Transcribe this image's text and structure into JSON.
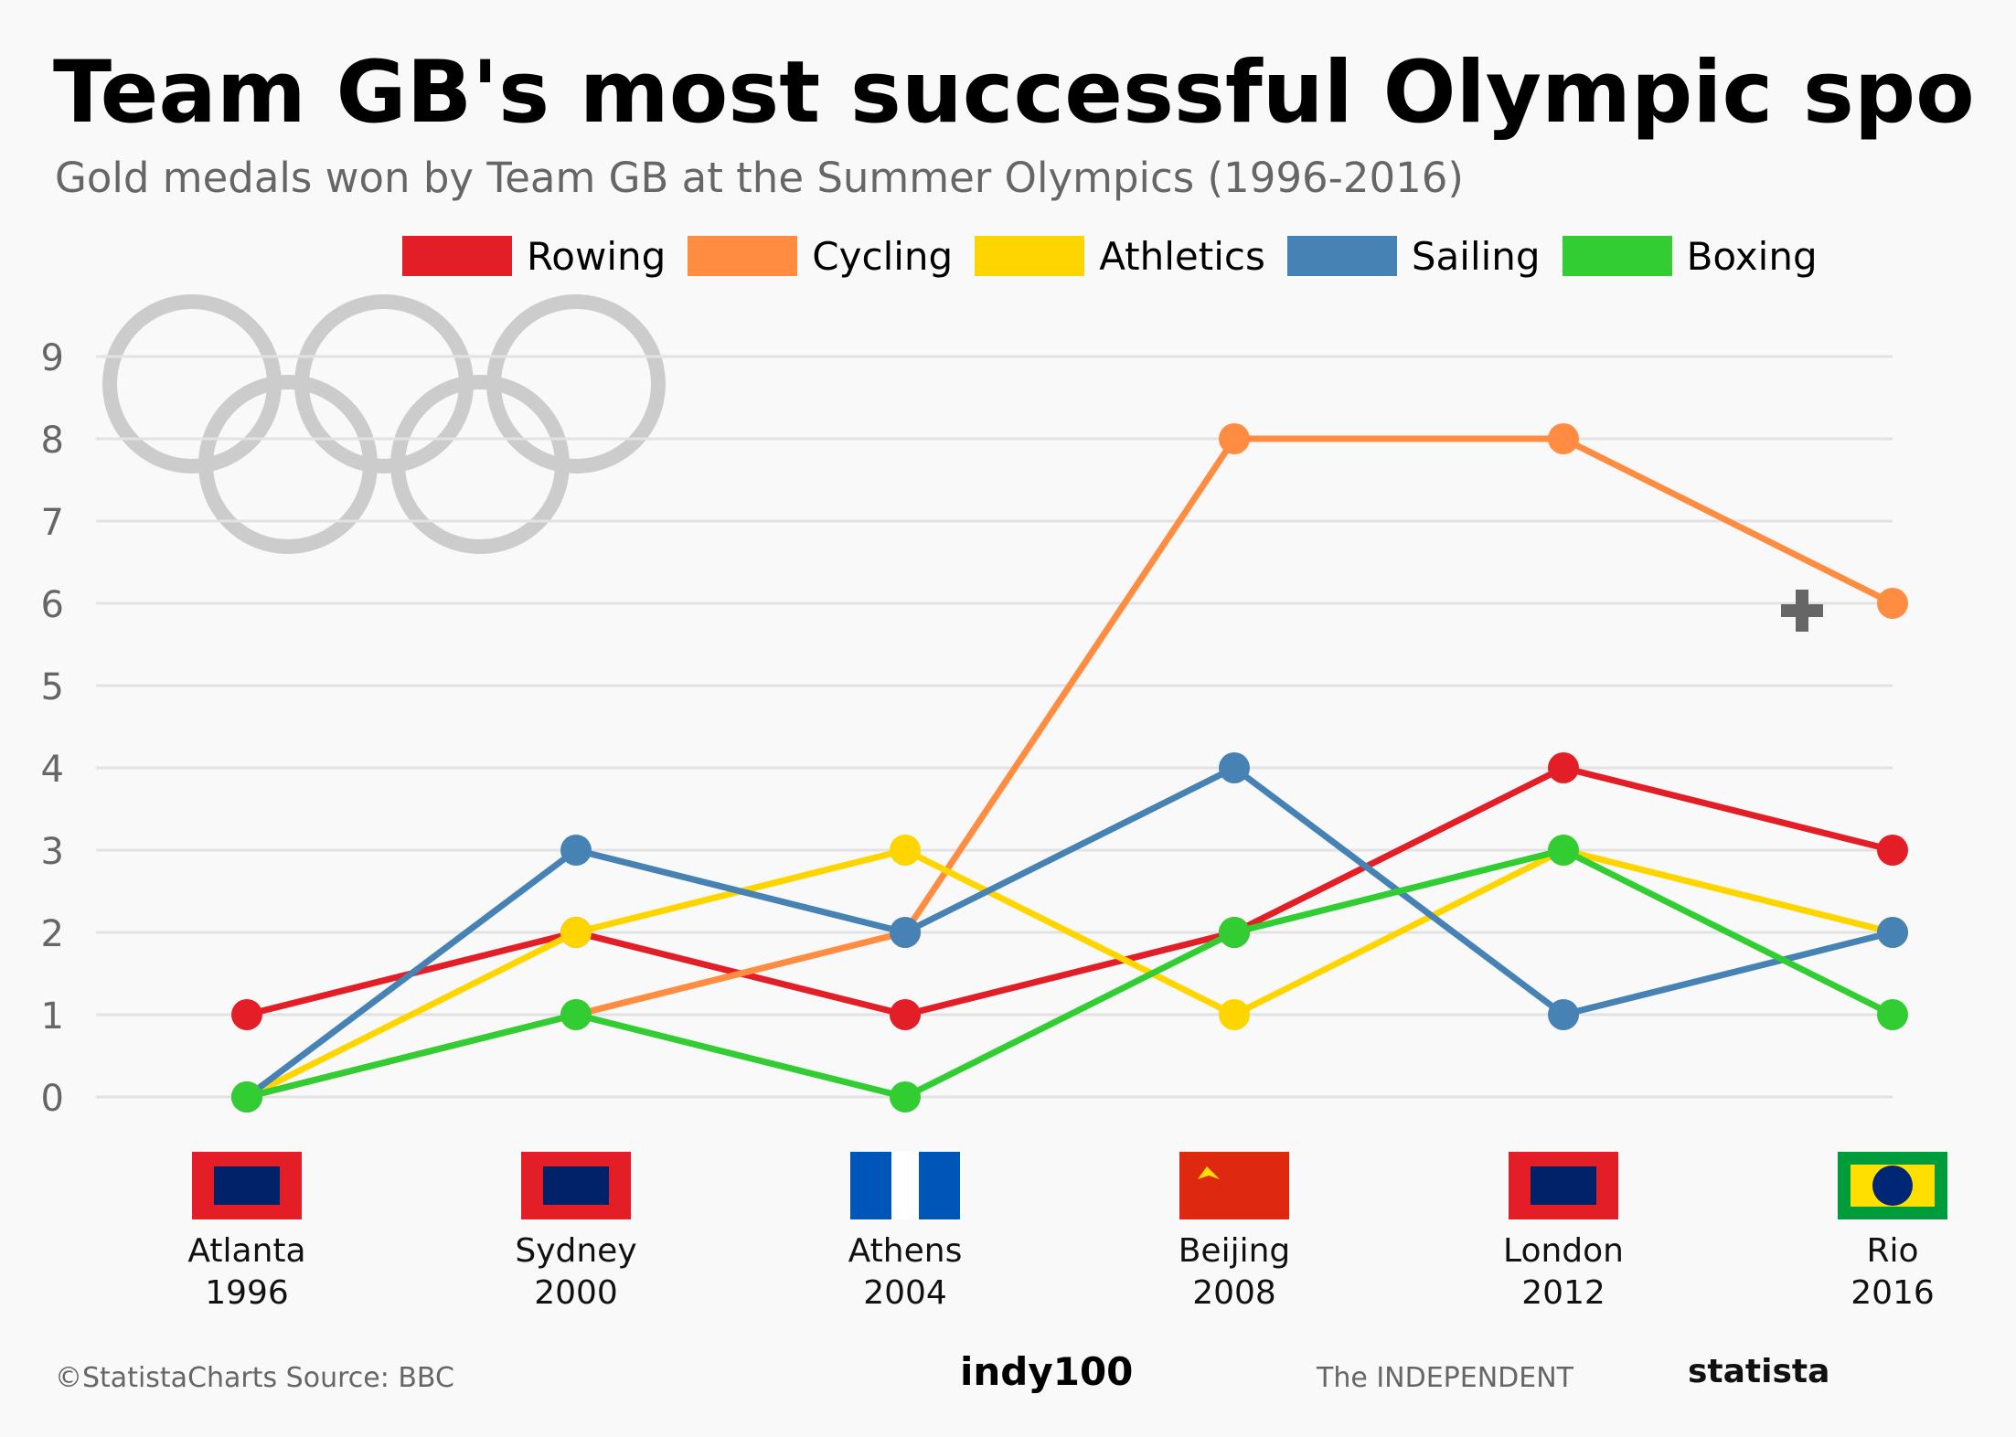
{
  "header": {
    "title": "Team GB's most successful Olympic spo",
    "subtitle": "Gold medals won by Team GB at the Summer Olympics (1996-2016)"
  },
  "footer": {
    "source": "©StatistaCharts Source: BBC",
    "indy": "indy100",
    "independent": "The INDEPENDENT",
    "statista": "statista"
  },
  "icons": [
    "olympic-rings-icon",
    "flag-atlanta-icon",
    "flag-sydney-icon",
    "flag-athens-icon",
    "flag-beijing-icon",
    "flag-london-icon",
    "flag-rio-icon",
    "plus-icon"
  ],
  "chart_data": {
    "type": "line",
    "categories": [
      [
        "Atlanta",
        "1996"
      ],
      [
        "Sydney",
        "2000"
      ],
      [
        "Athens",
        "2004"
      ],
      [
        "Beijing",
        "2008"
      ],
      [
        "London",
        "2012"
      ],
      [
        "Rio",
        "2016"
      ]
    ],
    "y_ticks": [
      "0",
      "1",
      "2",
      "3",
      "4",
      "5",
      "6",
      "7",
      "8",
      "9"
    ],
    "ylim": [
      0,
      9
    ],
    "grid": true,
    "legend_position": "top",
    "series": [
      {
        "name": "Rowing",
        "color": "#e31e26",
        "values": [
          1,
          2,
          1,
          2,
          4,
          3
        ]
      },
      {
        "name": "Cycling",
        "color": "#ff8c40",
        "values": [
          0,
          1,
          2,
          8,
          8,
          6
        ]
      },
      {
        "name": "Athletics",
        "color": "#ffd500",
        "values": [
          0,
          2,
          3,
          1,
          3,
          2
        ]
      },
      {
        "name": "Sailing",
        "color": "#4682b4",
        "values": [
          0,
          3,
          2,
          4,
          1,
          2
        ]
      },
      {
        "name": "Boxing",
        "color": "#32cd32",
        "values": [
          0,
          1,
          0,
          2,
          3,
          1
        ]
      }
    ]
  }
}
